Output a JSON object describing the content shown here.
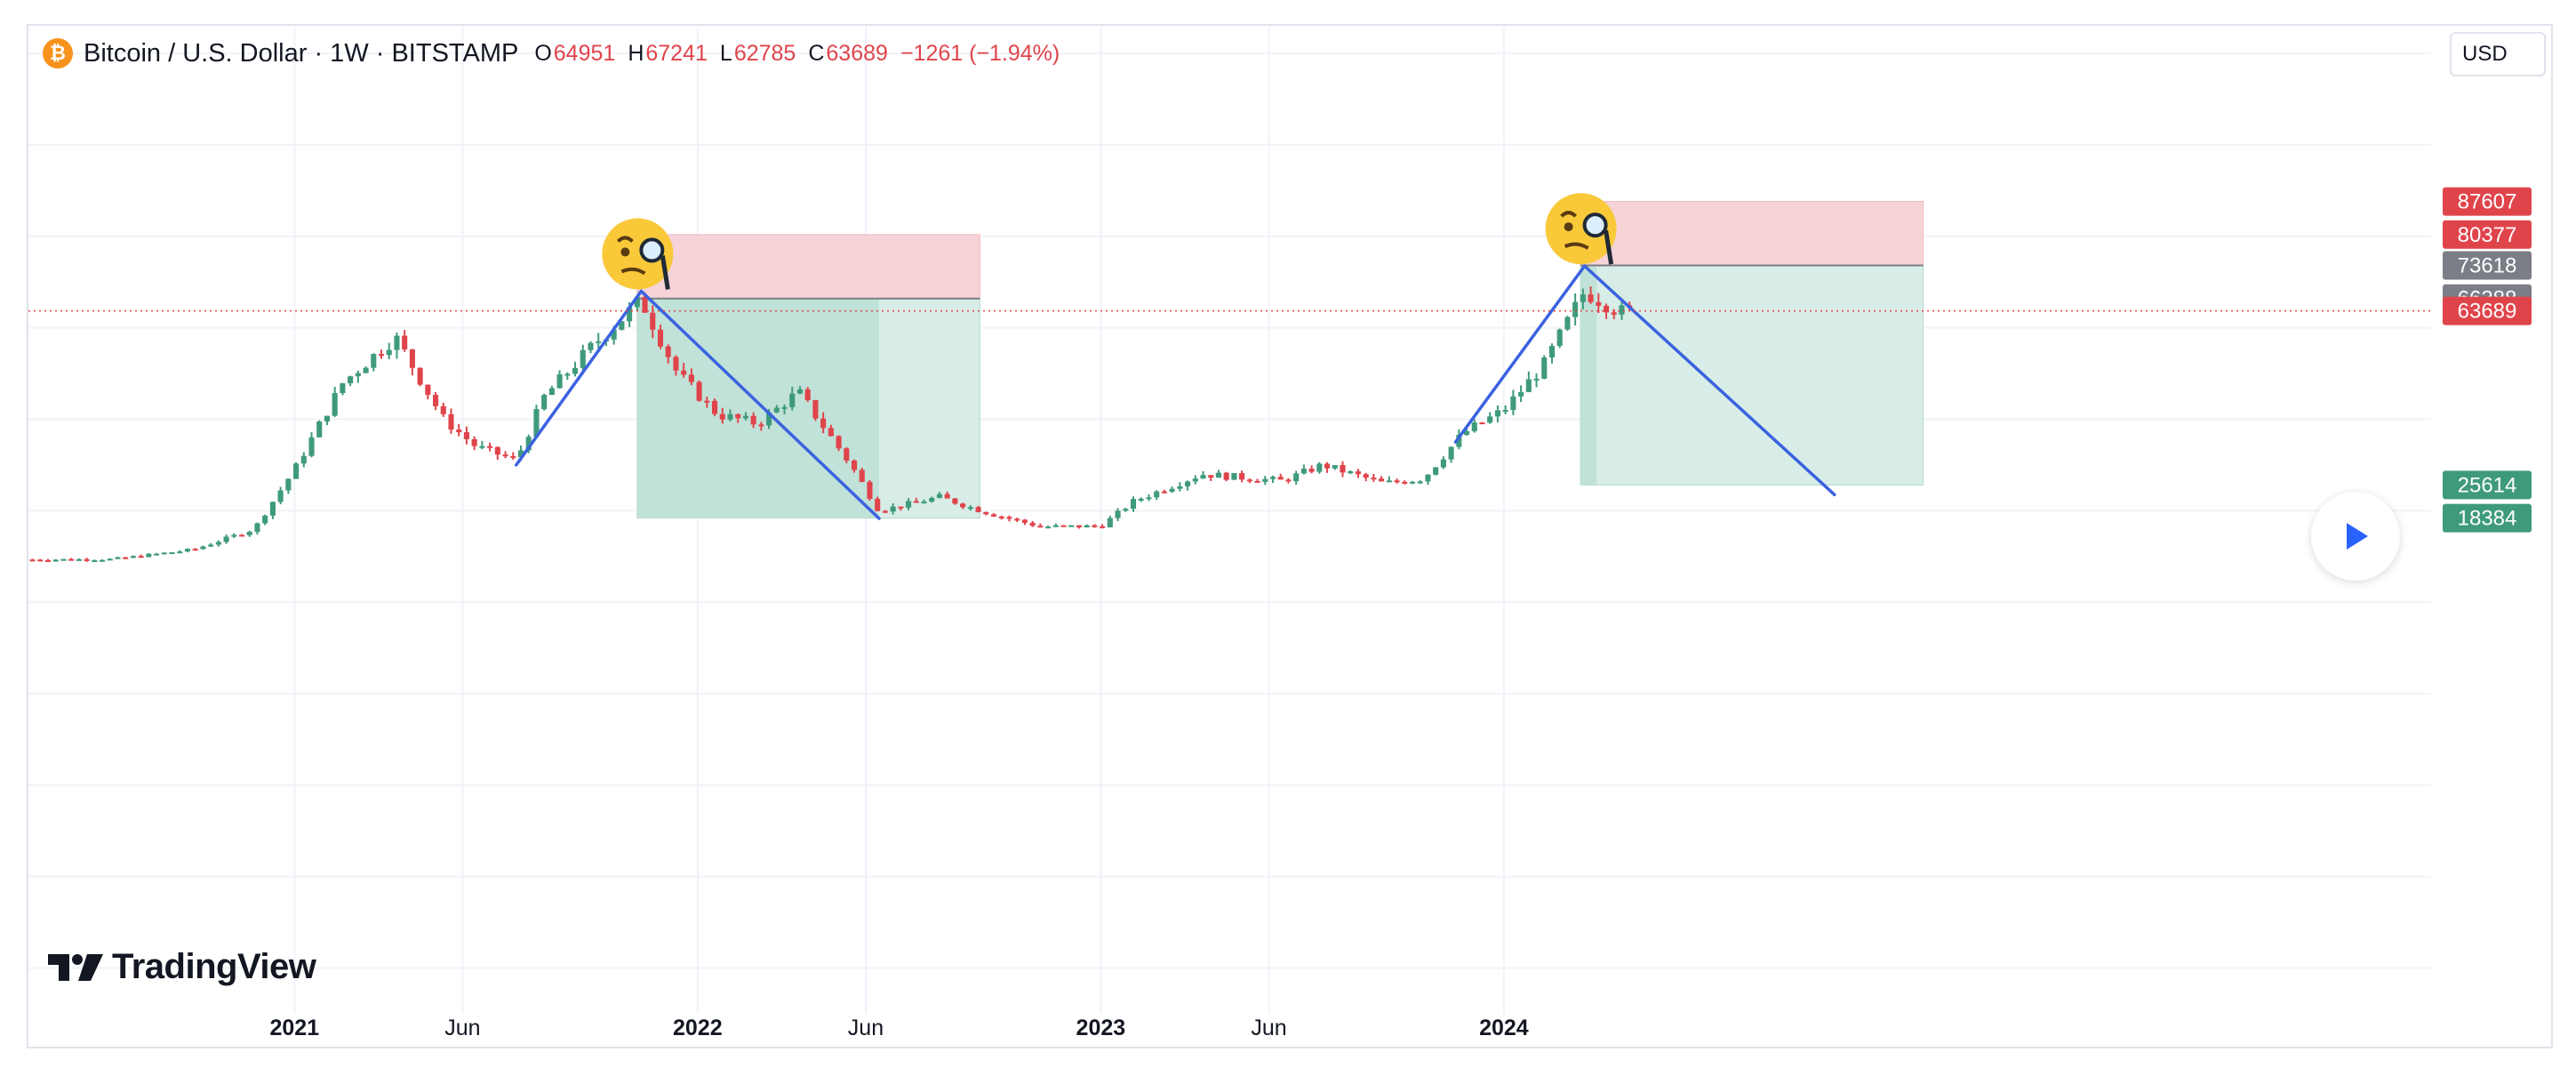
{
  "legend": {
    "symbol": "Bitcoin / U.S. Dollar · 1W · BITSTAMP",
    "o_label": "O",
    "o": "64951",
    "h_label": "H",
    "h": "67241",
    "l_label": "L",
    "l": "62785",
    "c_label": "C",
    "c": "63689",
    "change": "−1261 (−1.94%)"
  },
  "currency_button": "USD",
  "branding": "TradingView",
  "colors": {
    "up": "#3f9a7b",
    "down": "#e0444b",
    "pattern_line": "#3a62e0",
    "stop_zone": "#f5d3d7",
    "target_zone": "#bfe0d6",
    "target_zone_light": "#d8ede7",
    "price_line": "#e0444b"
  },
  "chart_data": {
    "type": "candlestick",
    "title": "Bitcoin / U.S. Dollar · 1W · BITSTAMP",
    "y_ticks": [
      "120000",
      "100000",
      "60000",
      "40000",
      "0",
      "−20000",
      "−40000",
      "−60000",
      "−80000"
    ],
    "x_ticks": [
      {
        "label": "2021",
        "t": 2021.0,
        "bold": true
      },
      {
        "label": "Jun",
        "t": 2021.417,
        "bold": false
      },
      {
        "label": "2022",
        "t": 2022.0,
        "bold": true
      },
      {
        "label": "Jun",
        "t": 2022.417,
        "bold": false
      },
      {
        "label": "2023",
        "t": 2023.0,
        "bold": true
      },
      {
        "label": "Jun",
        "t": 2023.417,
        "bold": false
      },
      {
        "label": "2024",
        "t": 2024.0,
        "bold": true
      }
    ],
    "ylim": [
      -90000,
      120000
    ],
    "xlim": [
      2020.34,
      2026.3
    ],
    "price_anchors": [
      [
        2020.35,
        9300
      ],
      [
        2020.55,
        9400
      ],
      [
        2020.75,
        11500
      ],
      [
        2020.9,
        16000
      ],
      [
        2021.0,
        29000
      ],
      [
        2021.12,
        48000
      ],
      [
        2021.25,
        58000
      ],
      [
        2021.37,
        40000
      ],
      [
        2021.45,
        34000
      ],
      [
        2021.55,
        31000
      ],
      [
        2021.62,
        45000
      ],
      [
        2021.75,
        57000
      ],
      [
        2021.86,
        66000
      ],
      [
        2021.95,
        50000
      ],
      [
        2022.05,
        41000
      ],
      [
        2022.15,
        39000
      ],
      [
        2022.25,
        46000
      ],
      [
        2022.38,
        30000
      ],
      [
        2022.45,
        20000
      ],
      [
        2022.6,
        23000
      ],
      [
        2022.72,
        19500
      ],
      [
        2022.85,
        16500
      ],
      [
        2023.0,
        16600
      ],
      [
        2023.08,
        22000
      ],
      [
        2023.25,
        28000
      ],
      [
        2023.45,
        26500
      ],
      [
        2023.55,
        30000
      ],
      [
        2023.7,
        26000
      ],
      [
        2023.8,
        27000
      ],
      [
        2023.9,
        37000
      ],
      [
        2024.0,
        42000
      ],
      [
        2024.1,
        52000
      ],
      [
        2024.2,
        68000
      ],
      [
        2024.3,
        63000
      ],
      [
        2024.32,
        63689
      ]
    ],
    "positions": [
      {
        "entry": 66388,
        "stop": 80377,
        "target": 18384,
        "t_start": 2021.85,
        "t_end": 2022.7,
        "t_hit": 2022.45
      },
      {
        "entry": 73618,
        "stop": 87607,
        "target": 25614,
        "t_start": 2024.19,
        "t_end": 2025.04,
        "t_hit": null
      }
    ],
    "pattern_lines": [
      {
        "from": [
          2021.55,
          30000
        ],
        "to": [
          2021.86,
          68000
        ]
      },
      {
        "from": [
          2021.86,
          68000
        ],
        "to": [
          2022.45,
          18300
        ]
      },
      {
        "from": [
          2023.88,
          35000
        ],
        "to": [
          2024.2,
          73500
        ]
      },
      {
        "from": [
          2024.2,
          73500
        ],
        "to": [
          2024.82,
          23500
        ]
      }
    ],
    "current_price": 63689,
    "price_labels": [
      {
        "text": "87607",
        "value": 87607,
        "color": "#e0444b"
      },
      {
        "text": "80377",
        "value": 80377,
        "color": "#e0444b"
      },
      {
        "text": "73618",
        "value": 73618,
        "color": "#7b7e86"
      },
      {
        "text": "66388",
        "value": 66388,
        "color": "#7b7e86"
      },
      {
        "text": "63689",
        "value": 63689,
        "color": "#e0444b"
      },
      {
        "text": "25614",
        "value": 25614,
        "color": "#3f9a7b"
      },
      {
        "text": "18384",
        "value": 18384,
        "color": "#3f9a7b"
      }
    ]
  }
}
